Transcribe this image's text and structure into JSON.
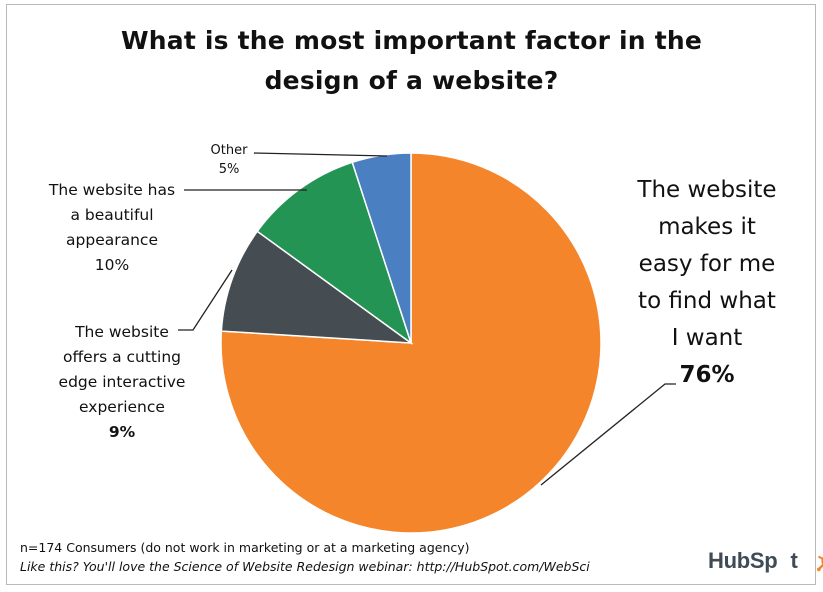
{
  "chart_data": {
    "type": "pie",
    "title": [
      "What is the most important factor in the",
      "design of a website?"
    ],
    "slices": [
      {
        "label": [
          "The website",
          "makes it",
          "easy for me",
          "to find what",
          "I want"
        ],
        "pct_label": "76%",
        "value": 76,
        "color": "#f5852a"
      },
      {
        "label": [
          "The website",
          "offers a cutting",
          "edge interactive",
          "experience"
        ],
        "pct_label": "9%",
        "value": 9,
        "color": "#454c52"
      },
      {
        "label": [
          "The website has",
          "a beautiful",
          "appearance"
        ],
        "pct_label": "10%",
        "value": 10,
        "color": "#239454"
      },
      {
        "label": [
          "Other"
        ],
        "pct_label": "5%",
        "value": 5,
        "color": "#4a7fc1"
      }
    ],
    "start_angle_deg": 0,
    "direction": "clockwise"
  },
  "footnote": "n=174 Consumers (do not work in marketing or at a marketing agency)",
  "promo": "Like this?  You'll love the Science of Website Redesign webinar: http://HubSpot.com/WebSci",
  "logo": {
    "text_a": "HubSp",
    "text_b": "t",
    "icon": "sprocket-icon",
    "accent": "#f5852a"
  }
}
